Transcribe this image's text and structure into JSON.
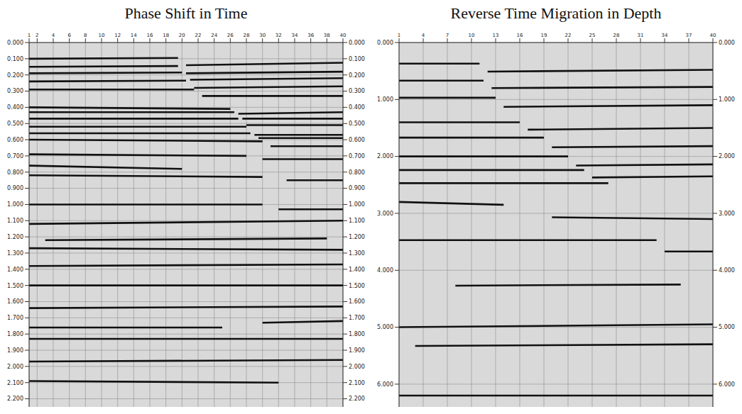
{
  "chart_data": [
    {
      "type": "line",
      "title": "Phase Shift in Time",
      "color": "#111111",
      "grid": true,
      "xlim": [
        1,
        40
      ],
      "xticks": [
        1,
        2,
        4,
        6,
        8,
        10,
        12,
        14,
        16,
        18,
        20,
        22,
        24,
        26,
        28,
        30,
        32,
        34,
        36,
        38,
        40
      ],
      "ylim": [
        0,
        2.25
      ],
      "yticks": [
        {
          "value": 0,
          "label": "0.000"
        },
        {
          "value": 0.1,
          "label": "0.100"
        },
        {
          "value": 0.2,
          "label": "0.200"
        },
        {
          "value": 0.3,
          "label": "0.300"
        },
        {
          "value": 0.4,
          "label": "0.400"
        },
        {
          "value": 0.5,
          "label": "0.500"
        },
        {
          "value": 0.6,
          "label": "0.600"
        },
        {
          "value": 0.7,
          "label": "0.700"
        },
        {
          "value": 0.8,
          "label": "0.800"
        },
        {
          "value": 0.9,
          "label": "0.900"
        },
        {
          "value": 1,
          "label": "1.000"
        },
        {
          "value": 1.1,
          "label": "1.100"
        },
        {
          "value": 1.2,
          "label": "1.200"
        },
        {
          "value": 1.3,
          "label": "1.300"
        },
        {
          "value": 1.4,
          "label": "1.400"
        },
        {
          "value": 1.5,
          "label": "1.500"
        },
        {
          "value": 1.6,
          "label": "1.600"
        },
        {
          "value": 1.7,
          "label": "1.700"
        },
        {
          "value": 1.8,
          "label": "1.800"
        },
        {
          "value": 1.9,
          "label": "1.900"
        },
        {
          "value": 2,
          "label": "2.000"
        },
        {
          "value": 2.1,
          "label": "2.100"
        },
        {
          "value": 2.2,
          "label": "2.200"
        }
      ],
      "y2lim": [
        0,
        2.25
      ],
      "y2ticks": [
        {
          "value": 0,
          "label": "0.000"
        },
        {
          "value": 0.1,
          "label": "0.100"
        },
        {
          "value": 0.2,
          "label": "0.200"
        },
        {
          "value": 0.3,
          "label": "0.300"
        },
        {
          "value": 0.4,
          "label": "0.400"
        },
        {
          "value": 0.5,
          "label": "0.500"
        },
        {
          "value": 0.6,
          "label": "0.600"
        },
        {
          "value": 0.7,
          "label": "0.700"
        },
        {
          "value": 0.8,
          "label": "0.800"
        },
        {
          "value": 0.9,
          "label": "0.900"
        },
        {
          "value": 1,
          "label": "1.000"
        },
        {
          "value": 1.1,
          "label": "1.100"
        },
        {
          "value": 1.2,
          "label": "1.200"
        },
        {
          "value": 1.3,
          "label": "1.300"
        },
        {
          "value": 1.4,
          "label": "1.400"
        },
        {
          "value": 1.5,
          "label": "1.500"
        },
        {
          "value": 1.6,
          "label": "1.600"
        },
        {
          "value": 1.7,
          "label": "1.700"
        },
        {
          "value": 1.8,
          "label": "1.800"
        },
        {
          "value": 1.9,
          "label": "1.900"
        },
        {
          "value": 2,
          "label": "2.000"
        },
        {
          "value": 2.1,
          "label": "2.100"
        },
        {
          "value": 2.2,
          "label": "2.200"
        }
      ],
      "series": [
        {
          "x": [
            1,
            19.5
          ],
          "values": [
            0.1,
            0.095
          ]
        },
        {
          "x": [
            20.5,
            40
          ],
          "values": [
            0.14,
            0.125
          ]
        },
        {
          "x": [
            1,
            19.5
          ],
          "values": [
            0.15,
            0.145
          ]
        },
        {
          "x": [
            20.5,
            40
          ],
          "values": [
            0.19,
            0.18
          ]
        },
        {
          "x": [
            1,
            20
          ],
          "values": [
            0.19,
            0.185
          ]
        },
        {
          "x": [
            21,
            40
          ],
          "values": [
            0.23,
            0.22
          ]
        },
        {
          "x": [
            1,
            20.5
          ],
          "values": [
            0.24,
            0.235
          ]
        },
        {
          "x": [
            21.5,
            40
          ],
          "values": [
            0.28,
            0.27
          ]
        },
        {
          "x": [
            1,
            21.5
          ],
          "values": [
            0.29,
            0.29
          ]
        },
        {
          "x": [
            22.5,
            40
          ],
          "values": [
            0.33,
            0.33
          ]
        },
        {
          "x": [
            1,
            26
          ],
          "values": [
            0.4,
            0.41
          ]
        },
        {
          "x": [
            27,
            40
          ],
          "values": [
            0.44,
            0.43
          ]
        },
        {
          "x": [
            1,
            26.5
          ],
          "values": [
            0.43,
            0.43
          ]
        },
        {
          "x": [
            27.5,
            40
          ],
          "values": [
            0.47,
            0.47
          ]
        },
        {
          "x": [
            1,
            27
          ],
          "values": [
            0.47,
            0.47
          ]
        },
        {
          "x": [
            28,
            40
          ],
          "values": [
            0.51,
            0.51
          ]
        },
        {
          "x": [
            1,
            28
          ],
          "values": [
            0.52,
            0.52
          ]
        },
        {
          "x": [
            29,
            40
          ],
          "values": [
            0.57,
            0.57
          ]
        },
        {
          "x": [
            1,
            28.5
          ],
          "values": [
            0.56,
            0.56
          ]
        },
        {
          "x": [
            29.5,
            40
          ],
          "values": [
            0.59,
            0.59
          ]
        },
        {
          "x": [
            1,
            30
          ],
          "values": [
            0.6,
            0.61
          ]
        },
        {
          "x": [
            31,
            40
          ],
          "values": [
            0.64,
            0.64
          ]
        },
        {
          "x": [
            1,
            28
          ],
          "values": [
            0.69,
            0.7
          ]
        },
        {
          "x": [
            30,
            40
          ],
          "values": [
            0.72,
            0.72
          ]
        },
        {
          "x": [
            1,
            20
          ],
          "values": [
            0.76,
            0.78
          ]
        },
        {
          "x": [
            1,
            30
          ],
          "values": [
            0.82,
            0.83
          ]
        },
        {
          "x": [
            33,
            40
          ],
          "values": [
            0.85,
            0.85
          ]
        },
        {
          "x": [
            1,
            30
          ],
          "values": [
            1,
            1
          ]
        },
        {
          "x": [
            32,
            40
          ],
          "values": [
            1.03,
            1.03
          ]
        },
        {
          "x": [
            1,
            40
          ],
          "values": [
            1.12,
            1.1
          ]
        },
        {
          "x": [
            3,
            38
          ],
          "values": [
            1.22,
            1.21
          ]
        },
        {
          "x": [
            1,
            40
          ],
          "values": [
            1.27,
            1.28
          ]
        },
        {
          "x": [
            1,
            40
          ],
          "values": [
            1.38,
            1.37
          ]
        },
        {
          "x": [
            1,
            40
          ],
          "values": [
            1.5,
            1.5
          ]
        },
        {
          "x": [
            1,
            40
          ],
          "values": [
            1.64,
            1.63
          ]
        },
        {
          "x": [
            1,
            25
          ],
          "values": [
            1.76,
            1.76
          ]
        },
        {
          "x": [
            30,
            40
          ],
          "values": [
            1.73,
            1.72
          ]
        },
        {
          "x": [
            1,
            40
          ],
          "values": [
            1.83,
            1.83
          ]
        },
        {
          "x": [
            1,
            40
          ],
          "values": [
            1.97,
            1.96
          ]
        },
        {
          "x": [
            1,
            32
          ],
          "values": [
            2.09,
            2.1
          ]
        }
      ]
    },
    {
      "type": "line",
      "title": "Reverse Time Migration in Depth",
      "color": "#111111",
      "grid": true,
      "xlim": [
        1,
        40
      ],
      "xticks": [
        1,
        4,
        7,
        10,
        13,
        16,
        19,
        22,
        25,
        28,
        31,
        34,
        37,
        40
      ],
      "ylim": [
        0,
        6.4
      ],
      "yticks": [
        {
          "value": 0,
          "label": "0.000"
        },
        {
          "value": 1,
          "label": "1.000"
        },
        {
          "value": 2,
          "label": "2.000"
        },
        {
          "value": 3,
          "label": "3.000"
        },
        {
          "value": 4,
          "label": "4.000"
        },
        {
          "value": 5,
          "label": "5.000"
        },
        {
          "value": 6,
          "label": "6.000"
        }
      ],
      "y2lim": [
        0,
        6.4
      ],
      "y2ticks": [
        {
          "value": 0,
          "label": "0.000"
        },
        {
          "value": 1,
          "label": "1.000"
        },
        {
          "value": 2,
          "label": "2.000"
        },
        {
          "value": 3,
          "label": "3.000"
        },
        {
          "value": 4,
          "label": "4.000"
        },
        {
          "value": 5,
          "label": "5.000"
        },
        {
          "value": 6,
          "label": "6.000"
        }
      ],
      "series": [
        {
          "x": [
            1,
            11
          ],
          "values": [
            0.37,
            0.37
          ]
        },
        {
          "x": [
            12,
            40
          ],
          "values": [
            0.51,
            0.48
          ]
        },
        {
          "x": [
            1,
            11.5
          ],
          "values": [
            0.67,
            0.67
          ]
        },
        {
          "x": [
            12.5,
            40
          ],
          "values": [
            0.8,
            0.78
          ]
        },
        {
          "x": [
            1,
            13
          ],
          "values": [
            0.97,
            0.97
          ]
        },
        {
          "x": [
            14,
            40
          ],
          "values": [
            1.13,
            1.1
          ]
        },
        {
          "x": [
            1,
            16
          ],
          "values": [
            1.4,
            1.4
          ]
        },
        {
          "x": [
            17,
            40
          ],
          "values": [
            1.53,
            1.5
          ]
        },
        {
          "x": [
            1,
            19
          ],
          "values": [
            1.67,
            1.67
          ]
        },
        {
          "x": [
            20,
            40
          ],
          "values": [
            1.84,
            1.82
          ]
        },
        {
          "x": [
            1,
            22
          ],
          "values": [
            2,
            2
          ]
        },
        {
          "x": [
            23,
            40
          ],
          "values": [
            2.16,
            2.14
          ]
        },
        {
          "x": [
            1,
            24
          ],
          "values": [
            2.24,
            2.24
          ]
        },
        {
          "x": [
            25,
            40
          ],
          "values": [
            2.37,
            2.35
          ]
        },
        {
          "x": [
            1,
            27
          ],
          "values": [
            2.47,
            2.47
          ]
        },
        {
          "x": [
            1,
            14
          ],
          "values": [
            2.8,
            2.85
          ]
        },
        {
          "x": [
            20,
            40
          ],
          "values": [
            3.07,
            3.1
          ]
        },
        {
          "x": [
            1,
            33
          ],
          "values": [
            3.47,
            3.47
          ]
        },
        {
          "x": [
            34,
            40
          ],
          "values": [
            3.67,
            3.67
          ]
        },
        {
          "x": [
            8,
            36
          ],
          "values": [
            4.27,
            4.25
          ]
        },
        {
          "x": [
            1,
            40
          ],
          "values": [
            5,
            4.95
          ]
        },
        {
          "x": [
            3,
            40
          ],
          "values": [
            5.33,
            5.3
          ]
        },
        {
          "x": [
            1,
            40
          ],
          "values": [
            6.2,
            6.2
          ]
        }
      ]
    }
  ]
}
